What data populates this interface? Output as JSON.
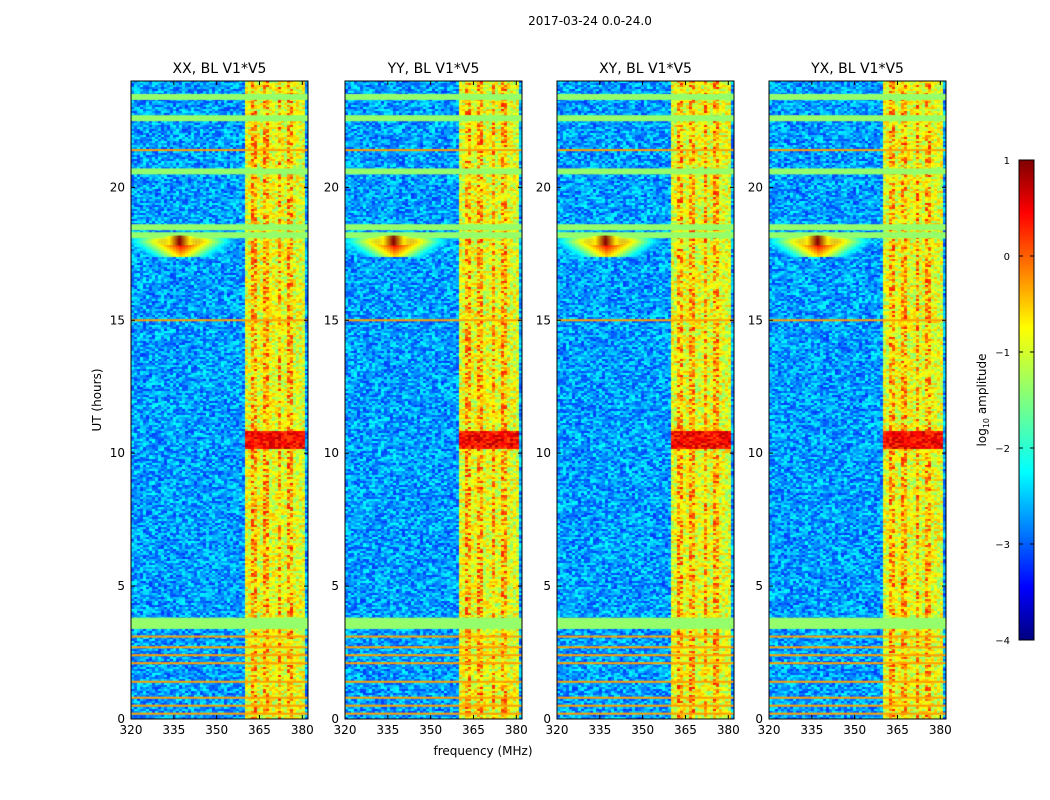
{
  "figure": {
    "suptitle": "2017-03-24 0.0-24.0",
    "shared_ylabel": "UT (hours)",
    "shared_xlabel": "frequency (MHz)"
  },
  "chart_data": {
    "type": "heatmap",
    "title": "2017-03-24 0.0-24.0",
    "xlabel": "frequency (MHz)",
    "ylabel": "UT (hours)",
    "xlim": [
      320,
      382
    ],
    "ylim": [
      0,
      24
    ],
    "xticks": [
      320,
      335,
      350,
      365,
      380
    ],
    "yticks": [
      0,
      5,
      10,
      15,
      20
    ],
    "panels": [
      {
        "title": "XX, BL V1*V5",
        "pol": "XX",
        "baseline": "V1*V5"
      },
      {
        "title": "YY, BL V1*V5",
        "pol": "YY",
        "baseline": "V1*V5"
      },
      {
        "title": "XY, BL V1*V5",
        "pol": "XY",
        "baseline": "V1*V5"
      },
      {
        "title": "YX, BL V1*V5",
        "pol": "YX",
        "baseline": "V1*V5"
      }
    ],
    "colorbar": {
      "label": "log10 amplitude",
      "label_base": "log",
      "label_sub": "10",
      "label_rest": " amplitude",
      "range": [
        -4,
        1
      ],
      "ticks": [
        "1",
        "0",
        "−1",
        "−2",
        "−3",
        "−4"
      ],
      "tick_values": [
        1,
        0,
        -1,
        -2,
        -3,
        -4
      ],
      "colormap": "jet"
    },
    "features": {
      "rfi_band_mhz": [
        359,
        380
      ],
      "rfi_channels_mhz": [
        362.5,
        366.5,
        371.5,
        375.5
      ],
      "broadband_burst_ut": 18.0,
      "broadband_burst_peak_mhz": 337,
      "strong_ut_band": [
        10.2,
        10.9
      ],
      "saturated_rows_ut": [
        0.2,
        0.5,
        0.8,
        1.4,
        2.1,
        2.4,
        2.7,
        3.1,
        15.0,
        21.4
      ],
      "flat_rows_ut": [
        3.5,
        3.7,
        18.2,
        18.5,
        20.6,
        22.6,
        23.4
      ]
    }
  }
}
